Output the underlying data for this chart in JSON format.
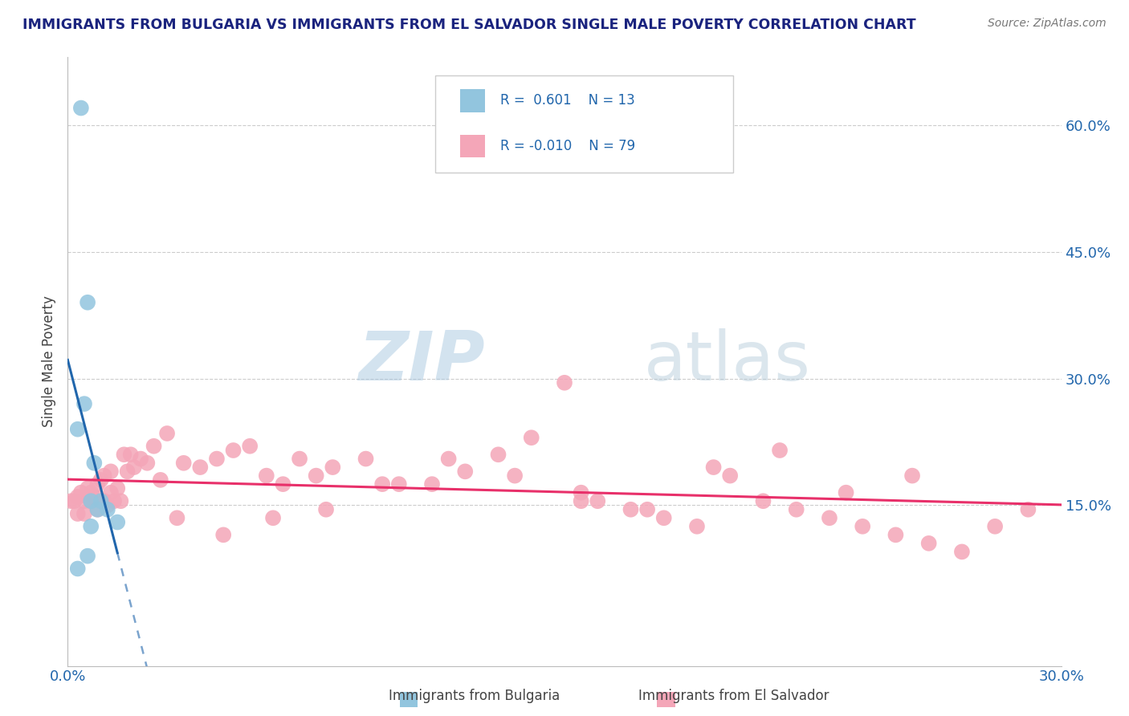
{
  "title": "IMMIGRANTS FROM BULGARIA VS IMMIGRANTS FROM EL SALVADOR SINGLE MALE POVERTY CORRELATION CHART",
  "source": "Source: ZipAtlas.com",
  "ylabel": "Single Male Poverty",
  "ytick_vals": [
    0.15,
    0.3,
    0.45,
    0.6
  ],
  "ytick_labels": [
    "15.0%",
    "30.0%",
    "45.0%",
    "60.0%"
  ],
  "xtick_vals": [
    0.0,
    0.3
  ],
  "xtick_labels": [
    "0.0%",
    "30.0%"
  ],
  "xlim": [
    0.0,
    0.3
  ],
  "ylim": [
    -0.04,
    0.68
  ],
  "blue_color": "#92c5de",
  "pink_color": "#f4a6b8",
  "line_blue": "#2166ac",
  "line_pink": "#e8306a",
  "grid_color": "#cccccc",
  "title_color": "#1a237e",
  "source_color": "#777777",
  "axis_label_color": "#444444",
  "tick_label_color": "#2166ac",
  "watermark_color": "#c8daea",
  "legend_r1": "R =  0.601",
  "legend_n1": "N = 13",
  "legend_r2": "R = -0.010",
  "legend_n2": "N = 79",
  "bulgaria_x": [
    0.004,
    0.006,
    0.005,
    0.003,
    0.008,
    0.01,
    0.012,
    0.007,
    0.009,
    0.015,
    0.007,
    0.006,
    0.003
  ],
  "bulgaria_y": [
    0.62,
    0.39,
    0.27,
    0.24,
    0.2,
    0.155,
    0.145,
    0.155,
    0.145,
    0.13,
    0.125,
    0.09,
    0.075
  ],
  "el_salvador_x": [
    0.001,
    0.002,
    0.003,
    0.004,
    0.005,
    0.006,
    0.006,
    0.007,
    0.008,
    0.009,
    0.01,
    0.011,
    0.012,
    0.013,
    0.014,
    0.015,
    0.016,
    0.017,
    0.018,
    0.019,
    0.02,
    0.022,
    0.024,
    0.026,
    0.028,
    0.03,
    0.035,
    0.04,
    0.045,
    0.05,
    0.055,
    0.06,
    0.065,
    0.07,
    0.075,
    0.08,
    0.09,
    0.1,
    0.11,
    0.12,
    0.13,
    0.14,
    0.15,
    0.155,
    0.16,
    0.17,
    0.18,
    0.19,
    0.2,
    0.21,
    0.22,
    0.23,
    0.24,
    0.25,
    0.26,
    0.27,
    0.28,
    0.29,
    0.003,
    0.005,
    0.007,
    0.009,
    0.011,
    0.013,
    0.033,
    0.047,
    0.062,
    0.078,
    0.095,
    0.115,
    0.135,
    0.155,
    0.175,
    0.195,
    0.215,
    0.235,
    0.255
  ],
  "el_salvador_y": [
    0.155,
    0.155,
    0.16,
    0.165,
    0.14,
    0.17,
    0.16,
    0.155,
    0.16,
    0.145,
    0.18,
    0.155,
    0.15,
    0.165,
    0.155,
    0.17,
    0.155,
    0.21,
    0.19,
    0.21,
    0.195,
    0.205,
    0.2,
    0.22,
    0.18,
    0.235,
    0.2,
    0.195,
    0.205,
    0.215,
    0.22,
    0.185,
    0.175,
    0.205,
    0.185,
    0.195,
    0.205,
    0.175,
    0.175,
    0.19,
    0.21,
    0.23,
    0.295,
    0.155,
    0.155,
    0.145,
    0.135,
    0.125,
    0.185,
    0.155,
    0.145,
    0.135,
    0.125,
    0.115,
    0.105,
    0.095,
    0.125,
    0.145,
    0.14,
    0.155,
    0.165,
    0.175,
    0.185,
    0.19,
    0.135,
    0.115,
    0.135,
    0.145,
    0.175,
    0.205,
    0.185,
    0.165,
    0.145,
    0.195,
    0.215,
    0.165,
    0.185
  ]
}
